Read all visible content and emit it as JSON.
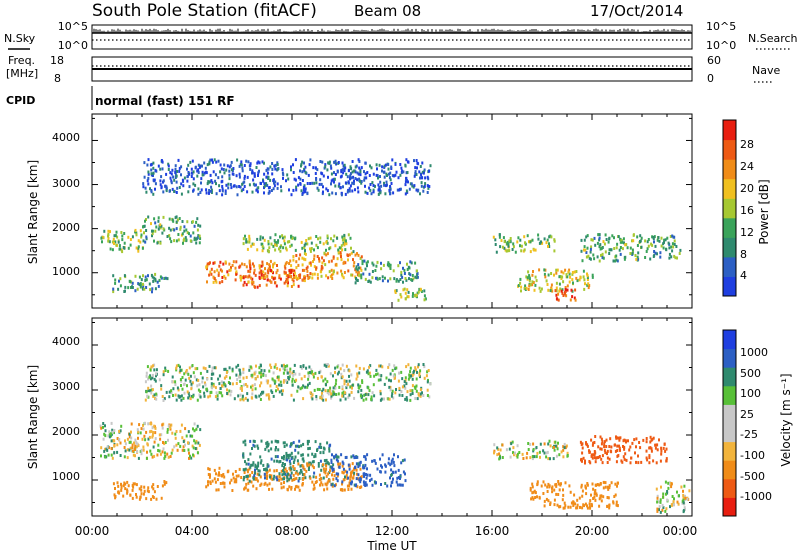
{
  "header": {
    "station": "South Pole Station (fitACF)",
    "beam": "Beam 08",
    "date": "17/Oct/2014"
  },
  "top_panels": {
    "nsky": {
      "label": "N.Sky",
      "tick_top": "10^5",
      "tick_bottom": "10^0"
    },
    "nsearch": {
      "label": "N.Search",
      "tick_top": "10^5",
      "tick_bottom": "10^0"
    },
    "freq": {
      "label_line1": "Freq.",
      "label_line2": "[MHz]",
      "tick_top": "18",
      "tick_bottom": "8"
    },
    "nave": {
      "label": "Nave",
      "tick_top": "60",
      "tick_bottom": "0"
    },
    "cpid": {
      "label": "CPID",
      "value": "normal (fast) 151 RF"
    }
  },
  "colors": {
    "power": [
      "#1f3fe0",
      "#2c5fc4",
      "#2f8a6e",
      "#3aa35a",
      "#a6c832",
      "#f0c020",
      "#f08c18",
      "#ee5a14",
      "#e81e10"
    ],
    "velocity": [
      "#e81e10",
      "#ee5a14",
      "#f08c18",
      "#f2b43c",
      "#c8c8c8",
      "#c8c8c8",
      "#58c038",
      "#2f8a6e",
      "#2c5fc4",
      "#1f3fe0"
    ]
  },
  "chart_data": [
    {
      "type": "heatmap",
      "panel": "power",
      "ylabel": "Slant Range [km]",
      "yticks": [
        "1000",
        "2000",
        "3000",
        "4000"
      ],
      "ylim": [
        200,
        4600
      ],
      "xlim": [
        0,
        24
      ],
      "colorbar_label": "Power [dB]",
      "colorbar_ticks": [
        "4",
        "8",
        "12",
        "16",
        "20",
        "24",
        "28"
      ],
      "colorbar_range": [
        0,
        32
      ],
      "blobs": [
        {
          "t0": 0.3,
          "t1": 2.0,
          "r0": 1500,
          "r1": 2000,
          "value": 14
        },
        {
          "t0": 2.0,
          "t1": 4.3,
          "r0": 1700,
          "r1": 2300,
          "value": 12
        },
        {
          "t0": 0.8,
          "t1": 3.0,
          "r0": 600,
          "r1": 1000,
          "value": 10
        },
        {
          "t0": 4.5,
          "t1": 8.0,
          "r0": 800,
          "r1": 1300,
          "value": 24
        },
        {
          "t0": 6.0,
          "t1": 8.5,
          "r0": 700,
          "r1": 1100,
          "value": 27
        },
        {
          "t0": 8.0,
          "t1": 10.8,
          "r0": 900,
          "r1": 1500,
          "value": 22
        },
        {
          "t0": 6.0,
          "t1": 10.5,
          "r0": 1500,
          "r1": 1900,
          "value": 14
        },
        {
          "t0": 10.5,
          "t1": 13.0,
          "r0": 800,
          "r1": 1300,
          "value": 10
        },
        {
          "t0": 12.0,
          "t1": 13.5,
          "r0": 400,
          "r1": 700,
          "value": 14
        },
        {
          "t0": 16.0,
          "t1": 18.5,
          "r0": 1500,
          "r1": 1900,
          "value": 14
        },
        {
          "t0": 17.0,
          "t1": 20.0,
          "r0": 600,
          "r1": 1100,
          "value": 18
        },
        {
          "t0": 18.5,
          "t1": 19.5,
          "r0": 400,
          "r1": 700,
          "value": 28
        },
        {
          "t0": 19.5,
          "t1": 23.5,
          "r0": 1300,
          "r1": 1900,
          "value": 12
        },
        {
          "t0": 2.0,
          "t1": 13.5,
          "r0": 2800,
          "r1": 3600,
          "value": 4
        }
      ]
    },
    {
      "type": "heatmap",
      "panel": "velocity",
      "ylabel": "Slant Range [km]",
      "yticks": [
        "1000",
        "2000",
        "3000",
        "4000"
      ],
      "ylim": [
        200,
        4600
      ],
      "xlim": [
        0,
        24
      ],
      "xticks": [
        "00:00",
        "04:00",
        "08:00",
        "12:00",
        "16:00",
        "20:00",
        "00:00"
      ],
      "xlabel": "Time UT",
      "colorbar_label": "Velocity [m s⁻¹]",
      "colorbar_ticks": [
        "-1000",
        "-500",
        "-100",
        "-25",
        "25",
        "100",
        "500",
        "1000"
      ],
      "blobs": [
        {
          "t0": 0.3,
          "t1": 4.3,
          "r0": 1500,
          "r1": 2300,
          "value": 0
        },
        {
          "t0": 0.8,
          "t1": 3.0,
          "r0": 600,
          "r1": 1000,
          "value": -300
        },
        {
          "t0": 4.5,
          "t1": 8.0,
          "r0": 800,
          "r1": 1300,
          "value": -300
        },
        {
          "t0": 6.0,
          "t1": 9.5,
          "r0": 1000,
          "r1": 1900,
          "value": 400
        },
        {
          "t0": 8.0,
          "t1": 10.8,
          "r0": 800,
          "r1": 1400,
          "value": -300
        },
        {
          "t0": 9.5,
          "t1": 12.5,
          "r0": 900,
          "r1": 1600,
          "value": 600
        },
        {
          "t0": 16.0,
          "t1": 19.0,
          "r0": 1500,
          "r1": 1900,
          "value": 0
        },
        {
          "t0": 17.5,
          "t1": 21.0,
          "r0": 400,
          "r1": 1000,
          "value": -300
        },
        {
          "t0": 19.5,
          "t1": 23.0,
          "r0": 1400,
          "r1": 2000,
          "value": -700
        },
        {
          "t0": 22.5,
          "t1": 23.9,
          "r0": 300,
          "r1": 1000,
          "value": 0
        },
        {
          "t0": 2.0,
          "t1": 13.5,
          "r0": 2800,
          "r1": 3600,
          "value": 50
        }
      ]
    }
  ]
}
